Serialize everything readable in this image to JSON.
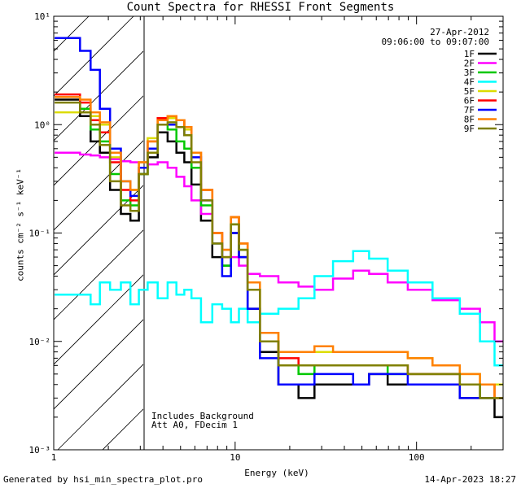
{
  "title": "Count Spectra for RHESSI Front Segments",
  "date": "27-Apr-2012",
  "time_range": "09:06:00 to 09:07:00",
  "ylabel": "counts cm⁻² s⁻¹ keV⁻¹",
  "xlabel": "Energy (keV)",
  "annotation_line1": "Includes Background",
  "annotation_line2": "Att A0, FDecim 1",
  "footer_left": "Generated by hsi_min_spectra_plot.pro",
  "footer_right": "14-Apr-2023 18:27",
  "chart_data": {
    "type": "line",
    "x_scale": "log",
    "y_scale": "log",
    "xlim": [
      1,
      300
    ],
    "ylim": [
      0.001,
      10
    ],
    "x_tick_labels": [
      "1",
      "10",
      "100"
    ],
    "y_tick_labels": [
      "10⁻³",
      "10⁻²",
      "10⁻¹",
      "10⁰",
      "10¹"
    ],
    "shaded_region_below_keV": 3,
    "x": [
      1.1,
      1.3,
      1.5,
      1.7,
      1.9,
      2.2,
      2.5,
      2.8,
      3.1,
      3.5,
      4.0,
      4.5,
      5.0,
      5.5,
      6.0,
      7.0,
      8.0,
      9.0,
      10.0,
      11.0,
      12.5,
      15,
      20,
      25,
      30,
      40,
      50,
      60,
      80,
      100,
      150,
      200,
      250,
      290
    ],
    "series": [
      {
        "name": "1F",
        "color": "#000000",
        "values": [
          1.7,
          1.7,
          1.2,
          0.7,
          0.55,
          0.25,
          0.15,
          0.13,
          0.35,
          0.5,
          0.85,
          0.7,
          0.55,
          0.45,
          0.28,
          0.13,
          0.06,
          0.05,
          0.1,
          0.06,
          0.02,
          0.008,
          0.004,
          0.003,
          0.004,
          0.004,
          0.004,
          0.005,
          0.004,
          0.004,
          0.004,
          0.003,
          0.003,
          0.002
        ]
      },
      {
        "name": "2F",
        "color": "#ff00ff",
        "values": [
          0.55,
          0.55,
          0.53,
          0.52,
          0.5,
          0.48,
          0.46,
          0.45,
          0.45,
          0.43,
          0.45,
          0.4,
          0.33,
          0.27,
          0.2,
          0.15,
          0.1,
          0.07,
          0.06,
          0.05,
          0.042,
          0.04,
          0.035,
          0.032,
          0.03,
          0.038,
          0.045,
          0.042,
          0.035,
          0.03,
          0.024,
          0.02,
          0.015,
          0.01
        ]
      },
      {
        "name": "3F",
        "color": "#00c800",
        "values": [
          1.8,
          1.8,
          1.4,
          0.9,
          0.7,
          0.35,
          0.2,
          0.18,
          0.35,
          0.55,
          1.0,
          0.9,
          0.7,
          0.6,
          0.4,
          0.18,
          0.08,
          0.05,
          0.12,
          0.07,
          0.03,
          0.01,
          0.006,
          0.005,
          0.006,
          0.006,
          0.006,
          0.006,
          0.005,
          0.005,
          0.005,
          0.004,
          0.003,
          0.003
        ]
      },
      {
        "name": "4F",
        "color": "#00ffff",
        "values": [
          0.027,
          0.027,
          0.027,
          0.022,
          0.035,
          0.03,
          0.035,
          0.022,
          0.03,
          0.035,
          0.025,
          0.035,
          0.027,
          0.03,
          0.025,
          0.015,
          0.022,
          0.02,
          0.015,
          0.02,
          0.015,
          0.018,
          0.02,
          0.025,
          0.04,
          0.055,
          0.068,
          0.058,
          0.045,
          0.035,
          0.025,
          0.018,
          0.01,
          0.006
        ]
      },
      {
        "name": "5F",
        "color": "#dcdc00",
        "values": [
          1.3,
          1.3,
          1.3,
          1.2,
          1.0,
          0.5,
          0.3,
          0.25,
          0.45,
          0.75,
          1.1,
          1.15,
          1.1,
          0.9,
          0.55,
          0.25,
          0.1,
          0.07,
          0.14,
          0.08,
          0.035,
          0.012,
          0.008,
          0.008,
          0.008,
          0.008,
          0.008,
          0.008,
          0.008,
          0.007,
          0.006,
          0.005,
          0.004,
          0.004
        ]
      },
      {
        "name": "6F",
        "color": "#ff0000",
        "values": [
          1.9,
          1.9,
          1.6,
          1.1,
          0.85,
          0.45,
          0.25,
          0.2,
          0.4,
          0.7,
          1.15,
          1.2,
          1.1,
          0.95,
          0.55,
          0.25,
          0.1,
          0.06,
          0.14,
          0.08,
          0.03,
          0.01,
          0.007,
          0.006,
          0.006,
          0.006,
          0.006,
          0.006,
          0.006,
          0.005,
          0.005,
          0.004,
          0.004,
          0.003
        ]
      },
      {
        "name": "7F",
        "color": "#0000ff",
        "values": [
          6.3,
          6.3,
          4.8,
          3.2,
          1.4,
          0.6,
          0.3,
          0.22,
          0.4,
          0.6,
          1.0,
          1.0,
          0.95,
          0.8,
          0.5,
          0.2,
          0.08,
          0.04,
          0.1,
          0.06,
          0.02,
          0.007,
          0.004,
          0.004,
          0.005,
          0.005,
          0.004,
          0.005,
          0.005,
          0.004,
          0.004,
          0.003,
          0.003,
          0.003
        ]
      },
      {
        "name": "8F",
        "color": "#ff8000",
        "values": [
          1.8,
          1.8,
          1.7,
          1.3,
          1.05,
          0.55,
          0.3,
          0.25,
          0.45,
          0.7,
          1.1,
          1.2,
          1.1,
          0.95,
          0.55,
          0.25,
          0.1,
          0.07,
          0.14,
          0.08,
          0.035,
          0.012,
          0.008,
          0.008,
          0.009,
          0.008,
          0.008,
          0.008,
          0.008,
          0.007,
          0.006,
          0.005,
          0.004,
          0.003
        ]
      },
      {
        "name": "9F",
        "color": "#808000",
        "values": [
          1.6,
          1.6,
          1.3,
          1.0,
          0.65,
          0.3,
          0.18,
          0.16,
          0.35,
          0.55,
          1.0,
          1.05,
          0.95,
          0.8,
          0.45,
          0.2,
          0.08,
          0.06,
          0.12,
          0.07,
          0.03,
          0.01,
          0.006,
          0.006,
          0.006,
          0.006,
          0.006,
          0.006,
          0.006,
          0.005,
          0.005,
          0.004,
          0.003,
          0.003
        ]
      }
    ]
  }
}
